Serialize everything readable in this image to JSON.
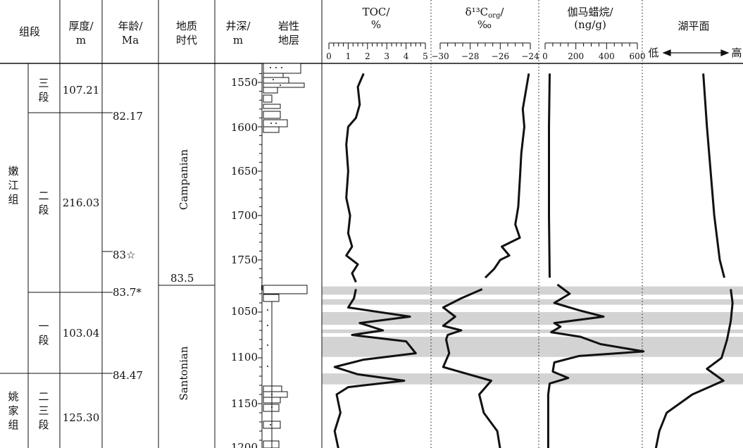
{
  "headers": {
    "formation_member": "组段",
    "thickness": [
      "厚度/",
      "m"
    ],
    "age": [
      "年龄/",
      "Ma"
    ],
    "geologic_time": [
      "地质",
      "时代"
    ],
    "depth": [
      "井深/",
      "m"
    ],
    "lithology": [
      "岩性",
      "地层"
    ],
    "toc": [
      "TOC/",
      "%"
    ],
    "d13c": [
      "δ¹³C",
      "org",
      "/",
      "‰"
    ],
    "gammacerane": [
      "伽马蜡烷/",
      "(ng/g)"
    ],
    "lake_level": "湖平面",
    "lake_low": "低",
    "lake_high": "高"
  },
  "formations": [
    {
      "name": "嫩江组",
      "chars": [
        "嫩",
        "江",
        "组"
      ]
    },
    {
      "name": "姚家组",
      "chars": [
        "姚",
        "家",
        "组"
      ]
    }
  ],
  "members": [
    {
      "chars": [
        "三",
        "段"
      ],
      "thickness": "107.21"
    },
    {
      "chars": [
        "二",
        "段"
      ],
      "thickness": "216.03"
    },
    {
      "chars": [
        "一",
        "段"
      ],
      "thickness": "103.04"
    },
    {
      "chars": [
        "二",
        "三",
        "段"
      ],
      "thickness": "125.30"
    }
  ],
  "ages": [
    "82.17",
    "83☆",
    "83.7*",
    "84.47"
  ],
  "geologic_time": {
    "upper": "Campanian",
    "lower": "Santonian",
    "boundary_age": "83.5"
  },
  "depth_ticks_upper": [
    "1550",
    "1600",
    "1650",
    "1700",
    "1750"
  ],
  "depth_ticks_lower": [
    "1050",
    "1100",
    "1150",
    "1200"
  ],
  "chart_data": {
    "type": "line",
    "y_axis": "depth (m), inverted",
    "grey_bands_depth": [
      [
        1022,
        1031
      ],
      [
        1036,
        1042
      ],
      [
        1050,
        1064
      ],
      [
        1069,
        1073
      ],
      [
        1077,
        1099
      ],
      [
        1117,
        1129
      ]
    ],
    "toc": {
      "label": "TOC/%",
      "xlim": [
        0,
        5
      ],
      "ticks": [
        "0",
        "1",
        "2",
        "3",
        "4",
        "5"
      ],
      "upper_depth": [
        1540,
        1555,
        1575,
        1590,
        1600,
        1620,
        1650,
        1680,
        1700,
        1720,
        1735,
        1745,
        1755,
        1765,
        1775
      ],
      "upper_values": [
        1.8,
        1.5,
        1.6,
        1.4,
        1.0,
        0.9,
        1.0,
        0.9,
        1.1,
        1.0,
        1.2,
        0.9,
        1.5,
        1.2,
        1.4
      ],
      "lower_depth": [
        1025,
        1035,
        1045,
        1055,
        1062,
        1070,
        1075,
        1082,
        1095,
        1102,
        1110,
        1118,
        1125,
        1132,
        1140,
        1160,
        1180,
        1200
      ],
      "lower_values": [
        1.4,
        1.3,
        1.0,
        4.2,
        1.6,
        2.8,
        1.2,
        4.0,
        4.5,
        1.8,
        0.3,
        1.5,
        3.9,
        1.0,
        0.4,
        0.6,
        0.3,
        0.5
      ]
    },
    "d13c_org": {
      "label": "δ13Corg/‰",
      "xlim": [
        -30,
        -24
      ],
      "ticks": [
        "−30",
        "−28",
        "−26",
        "−24"
      ],
      "upper_depth": [
        1540,
        1560,
        1580,
        1600,
        1630,
        1660,
        1690,
        1710,
        1725,
        1735,
        1745,
        1750,
        1760,
        1770
      ],
      "upper_values": [
        -24.1,
        -24.3,
        -24.5,
        -24.4,
        -24.6,
        -24.7,
        -24.8,
        -25.0,
        -24.7,
        -25.9,
        -25.4,
        -26.0,
        -26.4,
        -27.0
      ],
      "lower_depth": [
        1025,
        1035,
        1045,
        1055,
        1065,
        1070,
        1075,
        1080,
        1095,
        1110,
        1125,
        1140,
        1160,
        1180,
        1200
      ],
      "lower_values": [
        -27.2,
        -28.6,
        -29.8,
        -29.0,
        -29.8,
        -28.6,
        -29.5,
        -29.6,
        -29.4,
        -29.8,
        -26.6,
        -27.4,
        -27.1,
        -26.2,
        -26.0
      ]
    },
    "gammacerane": {
      "label": "伽马蜡烷/(ng/g)",
      "xlim": [
        0,
        600
      ],
      "ticks": [
        "0",
        "200",
        "400",
        "600"
      ],
      "upper_depth": [
        1540,
        1600,
        1700,
        1770
      ],
      "upper_values": [
        30,
        25,
        25,
        30
      ],
      "lower_depth": [
        1020,
        1030,
        1040,
        1048,
        1055,
        1062,
        1066,
        1072,
        1077,
        1085,
        1093,
        1098,
        1105,
        1115,
        1122,
        1128,
        1140,
        1200
      ],
      "lower_values": [
        80,
        160,
        60,
        220,
        380,
        60,
        100,
        40,
        230,
        360,
        640,
        220,
        60,
        50,
        150,
        30,
        20,
        20
      ]
    },
    "lake_level": {
      "label": "湖平面",
      "scale": "低 → 高",
      "upper_depth": [
        1540,
        1600,
        1650,
        1700,
        1750,
        1770
      ],
      "upper_values": [
        0.62,
        0.66,
        0.7,
        0.74,
        0.8,
        0.85
      ],
      "lower_depth": [
        1025,
        1040,
        1060,
        1080,
        1100,
        1112,
        1125,
        1140,
        1160,
        1180,
        1200
      ],
      "lower_values": [
        0.92,
        0.94,
        0.92,
        0.88,
        0.82,
        0.66,
        0.84,
        0.5,
        0.22,
        0.14,
        0.1
      ]
    }
  }
}
